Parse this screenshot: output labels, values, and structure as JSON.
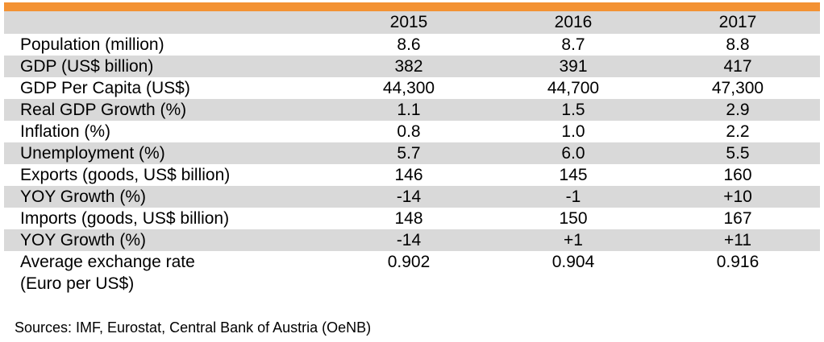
{
  "colors": {
    "accent": "#F39234",
    "shade": "#D9D9D9"
  },
  "table": {
    "headers": [
      "",
      "2015",
      "2016",
      "2017"
    ],
    "rows": [
      {
        "label": "Population (million)",
        "values": [
          "8.6",
          "8.7",
          "8.8"
        ]
      },
      {
        "label": "GDP (US$ billion)",
        "values": [
          "382",
          "391",
          "417"
        ]
      },
      {
        "label": "GDP Per Capita (US$)",
        "values": [
          "44,300",
          "44,700",
          "47,300"
        ]
      },
      {
        "label": "Real GDP Growth (%)",
        "values": [
          "1.1",
          "1.5",
          "2.9"
        ]
      },
      {
        "label": "Inflation (%)",
        "values": [
          "0.8",
          "1.0",
          "2.2"
        ]
      },
      {
        "label": "Unemployment (%)",
        "values": [
          "5.7",
          "6.0",
          "5.5"
        ]
      },
      {
        "label": "Exports (goods, US$ billion)",
        "values": [
          "146",
          "145",
          "160"
        ]
      },
      {
        "label": "YOY Growth (%)",
        "values": [
          "-14",
          "-1",
          "+10"
        ]
      },
      {
        "label": "Imports (goods, US$ billion)",
        "values": [
          "148",
          "150",
          "167"
        ]
      },
      {
        "label": "YOY Growth (%)",
        "values": [
          "-14",
          "+1",
          "+11"
        ]
      },
      {
        "label": "Average exchange rate",
        "label2": "(Euro per US$)",
        "values": [
          "0.902",
          "0.904",
          "0.916"
        ]
      }
    ]
  },
  "source": "Sources: IMF, Eurostat, Central Bank of Austria (OeNB)"
}
